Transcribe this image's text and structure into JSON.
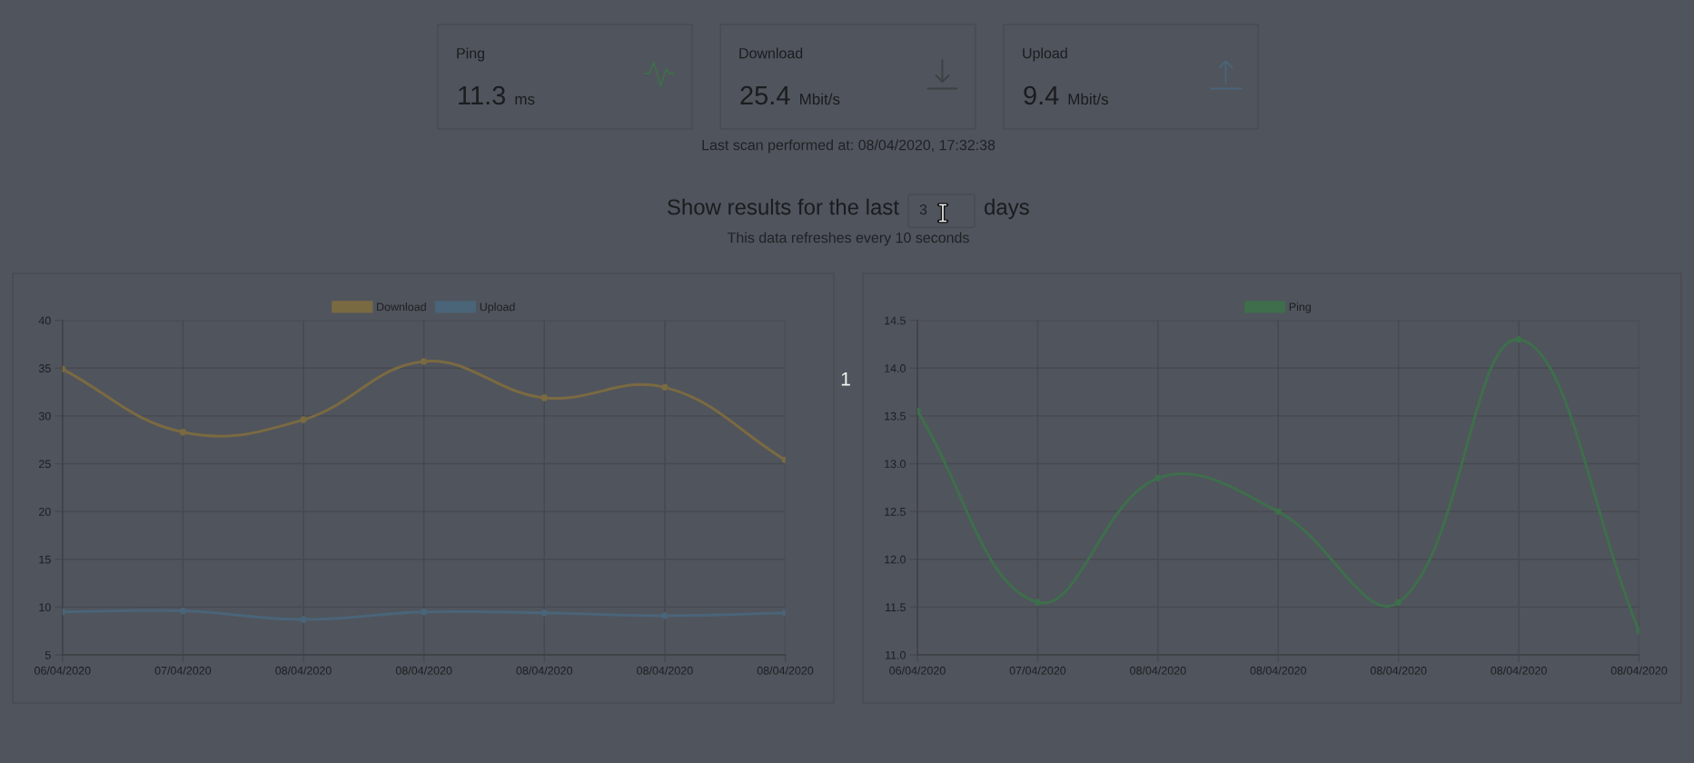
{
  "chart_data": [
    {
      "type": "other",
      "annotations": [
        "Ping",
        "11.3",
        "ms",
        "Download",
        "25.4",
        "Mbit/s",
        "Upload",
        "9.4",
        "Mbit/s",
        "Last scan performed at: 08/04/2020, 17:32:38",
        "Show results for the last",
        "3",
        "days",
        "This data refreshes every 10 seconds",
        "1"
      ]
    },
    {
      "type": "line",
      "categories": [
        "06/04/2020",
        "07/04/2020",
        "08/04/2020",
        "08/04/2020",
        "08/04/2020",
        "08/04/2020",
        "08/04/2020"
      ],
      "series": [
        {
          "name": "Download",
          "color": "#7a6a42",
          "values": [
            34.9,
            28.3,
            29.6,
            35.7,
            31.9,
            33.0,
            25.4
          ]
        },
        {
          "name": "Upload",
          "color": "#4a6478",
          "values": [
            9.5,
            9.6,
            8.7,
            9.5,
            9.4,
            9.1,
            9.4
          ]
        }
      ],
      "ylim": [
        5,
        40
      ],
      "yticks": [
        5,
        10,
        15,
        20,
        25,
        30,
        35,
        40
      ],
      "grid": true,
      "legend": "top",
      "marker": "circle",
      "line_style": "solid"
    },
    {
      "type": "line",
      "categories": [
        "06/04/2020",
        "07/04/2020",
        "08/04/2020",
        "08/04/2020",
        "08/04/2020",
        "08/04/2020",
        "08/04/2020"
      ],
      "series": [
        {
          "name": "Ping",
          "color": "#3e6e4c",
          "values": [
            13.55,
            11.55,
            12.85,
            12.5,
            11.55,
            14.3,
            11.25
          ]
        }
      ],
      "ylim": [
        11,
        14.5
      ],
      "yticks": [
        {
          "value": 11,
          "label": "11.0"
        },
        11.5,
        {
          "value": 12,
          "label": "12.0"
        },
        12.5,
        {
          "value": 13,
          "label": "13.0"
        },
        13.5,
        {
          "value": 14,
          "label": "14.0"
        },
        14.5
      ],
      "grid": true,
      "legend": "top",
      "marker": "circle",
      "line_style": "solid"
    }
  ]
}
